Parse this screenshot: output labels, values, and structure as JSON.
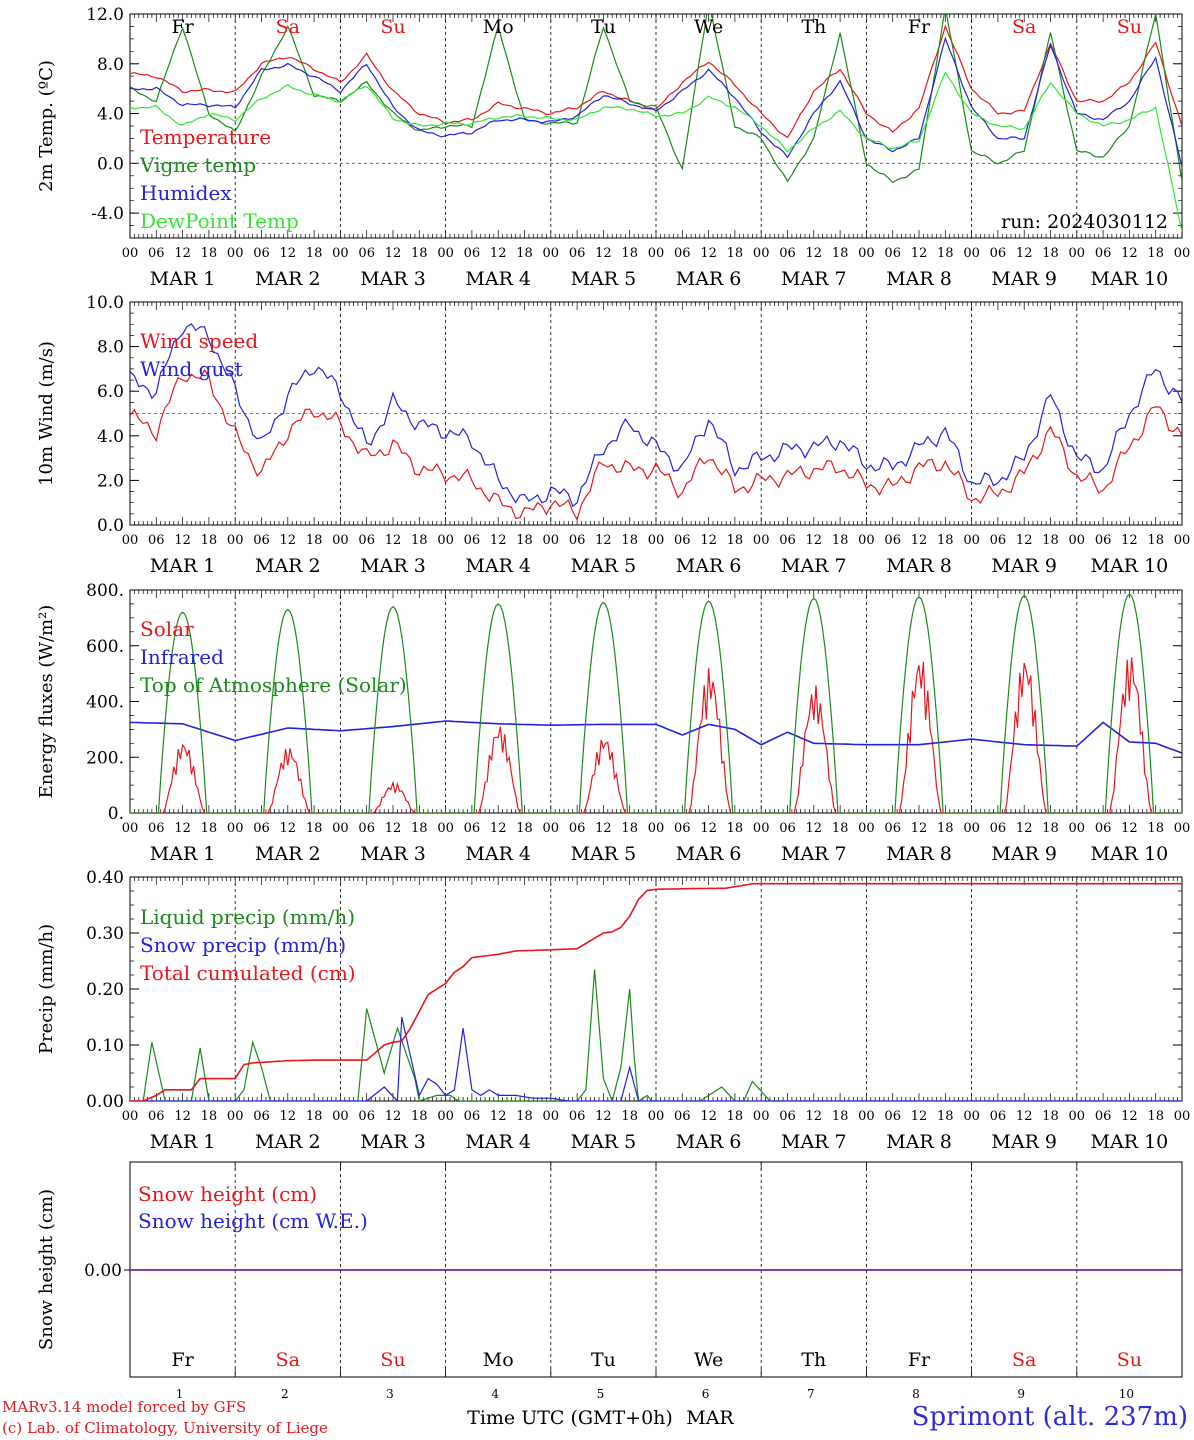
{
  "run_label": "run: 2024030112",
  "footer": {
    "credit_line1": "MARv3.14 model forced by GFS",
    "credit_line2": "(c) Lab. of Climatology, University of Liege",
    "station": "Sprimont (alt. 237m)"
  },
  "time_axis": {
    "title": "Time UTC (GMT+0h)",
    "month": "MAR",
    "date_labels": [
      "MAR  1",
      "MAR  2",
      "MAR  3",
      "MAR  4",
      "MAR  5",
      "MAR  6",
      "MAR  7",
      "MAR  8",
      "MAR  9",
      "MAR 10"
    ],
    "day_numbers": [
      "1",
      "2",
      "3",
      "4",
      "5",
      "6",
      "7",
      "8",
      "9",
      "10"
    ],
    "hour_ticks": [
      "00",
      "06",
      "12",
      "18"
    ],
    "weekdays": [
      "Fr",
      "Sa",
      "Su",
      "Mo",
      "Tu",
      "We",
      "Th",
      "Fr",
      "Sa",
      "Su"
    ],
    "weekend_flags": [
      false,
      true,
      true,
      false,
      false,
      false,
      false,
      false,
      true,
      true
    ]
  },
  "colors": {
    "red": "#e8161b",
    "green": "#1a8a1a",
    "blue": "#2222dd",
    "lightgreen": "#33e633",
    "purple": "#7a1fa0",
    "black": "#000000"
  },
  "chart_data": [
    {
      "type": "line",
      "ylabel": "2m Temp. (ºC)",
      "ylim": [
        -6,
        12
      ],
      "yticks": [
        "12.0",
        "8.0",
        "4.0",
        "0.0",
        "-4.0"
      ],
      "ytick_values": [
        12,
        8,
        4,
        0,
        -4
      ],
      "ref_line": 0,
      "x_hours": [
        0,
        6,
        12,
        18,
        24,
        30,
        36,
        42,
        48,
        54,
        60,
        66,
        72,
        78,
        84,
        90,
        96,
        102,
        108,
        114,
        120,
        126,
        132,
        138,
        144,
        150,
        156,
        162,
        168,
        174,
        180,
        186,
        192,
        198,
        204,
        210,
        216,
        222,
        228,
        234,
        240
      ],
      "series": [
        {
          "name": "Temperature",
          "color": "red",
          "values": [
            7.2,
            7.0,
            5.8,
            5.9,
            5.7,
            8.0,
            8.6,
            7.6,
            6.5,
            8.7,
            5.8,
            4.0,
            3.3,
            3.5,
            4.8,
            4.4,
            4.0,
            4.5,
            5.8,
            5.0,
            4.3,
            6.5,
            8.2,
            6.3,
            4.0,
            2.0,
            5.8,
            7.6,
            4.0,
            2.5,
            4.4,
            11.0,
            6.0,
            4.0,
            4.2,
            9.6,
            5.0,
            5.0,
            6.5,
            9.7,
            3.0
          ]
        },
        {
          "name": "Vigne temp",
          "color": "green",
          "values": [
            6.0,
            5.0,
            11.0,
            4.0,
            2.5,
            7.0,
            11.0,
            5.5,
            5.0,
            6.5,
            4.0,
            2.6,
            3.0,
            3.0,
            11.0,
            3.5,
            3.2,
            3.3,
            11.0,
            5.0,
            4.5,
            -0.5,
            13.0,
            3.0,
            2.0,
            -1.5,
            2.0,
            10.5,
            0.0,
            -1.5,
            -0.5,
            12.5,
            1.0,
            0.0,
            1.0,
            10.5,
            1.0,
            0.5,
            3.0,
            12.0,
            -1.5
          ]
        },
        {
          "name": "Humidex",
          "color": "blue",
          "values": [
            6.0,
            6.0,
            4.7,
            4.7,
            4.5,
            7.5,
            7.9,
            7.0,
            5.8,
            8.0,
            4.5,
            2.6,
            2.2,
            2.5,
            3.5,
            3.5,
            3.3,
            3.8,
            5.5,
            4.8,
            4.2,
            5.8,
            7.5,
            5.3,
            2.5,
            0.5,
            4.0,
            6.6,
            2.0,
            1.0,
            2.0,
            10.0,
            4.5,
            2.0,
            2.0,
            9.5,
            4.0,
            3.5,
            5.0,
            8.5,
            -0.3
          ]
        },
        {
          "name": "DewPoint Temp",
          "color": "lightgreen",
          "values": [
            4.5,
            4.5,
            3.0,
            4.0,
            3.5,
            5.2,
            6.2,
            5.5,
            5.0,
            6.3,
            3.6,
            3.0,
            3.2,
            3.2,
            3.7,
            3.8,
            3.6,
            3.5,
            4.5,
            4.4,
            3.8,
            4.0,
            5.3,
            4.5,
            3.0,
            1.0,
            2.8,
            4.2,
            2.0,
            1.2,
            1.8,
            7.3,
            4.0,
            3.0,
            2.8,
            6.5,
            4.0,
            3.0,
            3.5,
            4.5,
            -5.5
          ]
        }
      ]
    },
    {
      "type": "line",
      "ylabel": "10m Wind (m/s)",
      "ylim": [
        0,
        10
      ],
      "yticks": [
        "10.0",
        "8.0",
        "6.0",
        "4.0",
        "2.0",
        "0.0"
      ],
      "ytick_values": [
        10,
        8,
        6,
        4,
        2,
        0
      ],
      "ref_line": 5,
      "x_hours": [
        0,
        6,
        12,
        18,
        24,
        30,
        36,
        42,
        48,
        54,
        60,
        66,
        72,
        78,
        84,
        90,
        96,
        102,
        108,
        114,
        120,
        126,
        132,
        138,
        144,
        150,
        156,
        162,
        168,
        174,
        180,
        186,
        192,
        198,
        204,
        210,
        216,
        222,
        228,
        234,
        240
      ],
      "series": [
        {
          "name": "Wind speed",
          "color": "red",
          "values": [
            4.9,
            4.2,
            6.8,
            6.5,
            4.0,
            2.3,
            4.2,
            5.2,
            4.5,
            3.0,
            3.6,
            2.5,
            2.3,
            2.0,
            1.0,
            0.5,
            1.0,
            0.6,
            2.8,
            2.5,
            2.5,
            1.5,
            3.2,
            1.6,
            2.0,
            2.2,
            2.5,
            2.6,
            1.8,
            1.7,
            2.6,
            2.8,
            1.2,
            1.4,
            2.3,
            4.3,
            2.2,
            1.6,
            3.5,
            5.3,
            4.0
          ]
        },
        {
          "name": "Wind gust",
          "color": "blue",
          "values": [
            6.5,
            6.0,
            9.0,
            8.5,
            6.0,
            3.5,
            5.8,
            7.2,
            6.0,
            3.5,
            5.5,
            4.5,
            4.2,
            3.8,
            2.0,
            1.0,
            1.5,
            1.2,
            3.5,
            4.5,
            3.5,
            2.5,
            4.8,
            2.5,
            3.0,
            3.4,
            3.5,
            3.8,
            2.7,
            2.6,
            3.5,
            4.2,
            1.9,
            2.0,
            3.0,
            5.8,
            3.0,
            2.5,
            5.0,
            7.0,
            5.5
          ]
        }
      ]
    },
    {
      "type": "line",
      "ylabel": "Energy fluxes (W/m²)",
      "ylim": [
        0,
        800
      ],
      "yticks": [
        "800.",
        "600.",
        "400.",
        "200.",
        "0."
      ],
      "ytick_values": [
        800,
        600,
        400,
        200,
        0
      ],
      "series": [
        {
          "name": "Solar",
          "color": "red",
          "peaks": [
            260,
            240,
            110,
            320,
            280,
            525,
            460,
            570,
            570,
            575
          ]
        },
        {
          "name": "Infrared",
          "color": "blue",
          "x_hours": [
            0,
            12,
            24,
            36,
            48,
            60,
            72,
            84,
            96,
            108,
            120,
            126,
            132,
            138,
            144,
            150,
            156,
            168,
            180,
            192,
            204,
            216,
            222,
            228,
            234,
            240
          ],
          "values": [
            325,
            320,
            260,
            305,
            295,
            310,
            330,
            320,
            315,
            318,
            318,
            280,
            318,
            300,
            245,
            290,
            250,
            245,
            245,
            265,
            245,
            240,
            325,
            255,
            250,
            215
          ]
        },
        {
          "name": "Top of Atmosphere (Solar)",
          "color": "green",
          "peaks": [
            720,
            730,
            740,
            750,
            755,
            760,
            770,
            775,
            780,
            785
          ]
        }
      ]
    },
    {
      "type": "line",
      "ylabel": "Precip (mm/h)",
      "ylim": [
        0,
        0.4
      ],
      "yticks": [
        "0.40",
        "0.30",
        "0.20",
        "0.10",
        "0.00"
      ],
      "ytick_values": [
        0.4,
        0.3,
        0.2,
        0.1,
        0.0
      ],
      "series": [
        {
          "name": "Liquid precip (mm/h)",
          "color": "green",
          "x_hours": [
            0,
            3,
            5,
            8,
            14,
            16,
            18,
            24,
            26,
            28,
            30,
            32,
            36,
            48,
            52,
            54,
            58,
            61,
            65,
            66,
            70,
            73,
            75,
            80,
            84,
            90,
            96,
            102,
            104,
            106,
            108,
            110,
            112,
            114,
            115,
            116,
            118,
            119,
            120,
            124,
            126,
            130,
            135,
            138,
            140,
            142,
            146,
            240
          ],
          "values": [
            0,
            0,
            0.105,
            0,
            0,
            0.095,
            0,
            0,
            0.02,
            0.105,
            0.06,
            0,
            0,
            0,
            0,
            0.165,
            0.05,
            0.13,
            0.04,
            0,
            0.01,
            0.01,
            0,
            0,
            0,
            0,
            0,
            0,
            0.02,
            0.235,
            0.04,
            0,
            0.06,
            0.2,
            0.08,
            0,
            0.01,
            0,
            0,
            0,
            0,
            0,
            0.025,
            0,
            0,
            0.035,
            0,
            0
          ]
        },
        {
          "name": "Snow precip (mm/h)",
          "color": "blue",
          "x_hours": [
            0,
            48,
            54,
            58,
            61,
            62,
            64,
            66,
            68,
            70,
            72,
            74,
            76,
            78,
            80,
            82,
            84,
            88,
            92,
            96,
            100,
            112,
            114,
            116,
            120,
            240
          ],
          "values": [
            0,
            0,
            0.0,
            0.025,
            0.0,
            0.15,
            0.08,
            0.01,
            0.04,
            0.03,
            0.01,
            0.02,
            0.13,
            0.02,
            0.01,
            0.02,
            0.01,
            0.01,
            0.005,
            0.005,
            0.0,
            0.0,
            0.06,
            0.0,
            0,
            0
          ]
        },
        {
          "name": "Total cumulated (cm)",
          "color": "red",
          "x_hours": [
            0,
            3,
            6,
            8,
            10,
            14,
            16,
            20,
            24,
            26,
            28,
            32,
            36,
            42,
            48,
            54,
            58,
            60,
            62,
            64,
            66,
            68,
            70,
            72,
            74,
            76,
            78,
            80,
            84,
            88,
            96,
            102,
            108,
            110,
            112,
            114,
            116,
            118,
            120,
            126,
            136,
            142,
            240
          ],
          "values": [
            0,
            0,
            0.01,
            0.02,
            0.02,
            0.02,
            0.04,
            0.04,
            0.04,
            0.065,
            0.068,
            0.07,
            0.072,
            0.073,
            0.073,
            0.073,
            0.1,
            0.105,
            0.107,
            0.13,
            0.16,
            0.19,
            0.2,
            0.21,
            0.23,
            0.24,
            0.256,
            0.258,
            0.262,
            0.268,
            0.27,
            0.272,
            0.3,
            0.302,
            0.31,
            0.33,
            0.36,
            0.376,
            0.378,
            0.379,
            0.38,
            0.388,
            0.388
          ]
        }
      ]
    },
    {
      "type": "line",
      "ylabel": "Snow height (cm)",
      "yticks": [
        "0.00"
      ],
      "series": [
        {
          "name": "Snow height (cm)",
          "color": "red",
          "x_hours": [
            0,
            240
          ],
          "values": [
            0,
            0
          ]
        },
        {
          "name": "Snow height (cm W.E.)",
          "color": "blue",
          "x_hours": [
            0,
            240
          ],
          "values": [
            0,
            0
          ]
        }
      ]
    }
  ]
}
